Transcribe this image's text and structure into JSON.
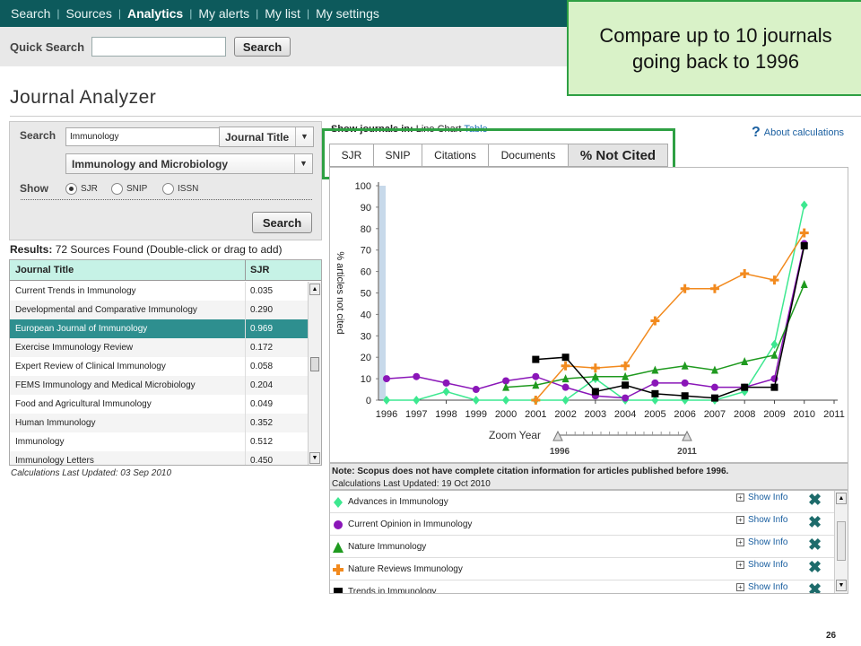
{
  "nav": {
    "items": [
      "Search",
      "Sources",
      "Analytics",
      "My alerts",
      "My list",
      "My settings"
    ],
    "active": "Analytics"
  },
  "quick_search": {
    "label": "Quick Search",
    "value": "",
    "button": "Search"
  },
  "callout": "Compare up to 10 journals going back to 1996",
  "page_title": "Journal Analyzer",
  "search_panel": {
    "label": "Search",
    "query": "Immunology",
    "field": "Journal Title",
    "category": "Immunology and Microbiology",
    "show_label": "Show",
    "options": [
      "SJR",
      "SNIP",
      "ISSN"
    ],
    "selected": "SJR",
    "button": "Search"
  },
  "results": {
    "prefix": "Results:",
    "text": "72 Sources Found (Double-click or drag to add)"
  },
  "table": {
    "headers": [
      "Journal Title",
      "SJR"
    ],
    "rows": [
      {
        "title": "Current Trends in Immunology",
        "sjr": "0.035"
      },
      {
        "title": "Developmental and Comparative Immunology",
        "sjr": "0.290"
      },
      {
        "title": "European Journal of Immunology",
        "sjr": "0.969",
        "selected": true
      },
      {
        "title": "Exercise Immunology Review",
        "sjr": "0.172"
      },
      {
        "title": "Expert Review of Clinical Immunology",
        "sjr": "0.058"
      },
      {
        "title": "FEMS Immunology and Medical Microbiology",
        "sjr": "0.204"
      },
      {
        "title": "Food and Agricultural Immunology",
        "sjr": "0.049"
      },
      {
        "title": "Human Immunology",
        "sjr": "0.352"
      },
      {
        "title": "Immunology",
        "sjr": "0.512"
      },
      {
        "title": "Immunology Letters",
        "sjr": "0.450"
      }
    ]
  },
  "calc_left": "Calculations Last Updated: 03 Sep 2010",
  "chart_header": {
    "show_in": "Show journals in:",
    "line_chart": "Line Chart",
    "table_link": "Table",
    "about": "About calculations"
  },
  "tabs": [
    "SJR",
    "SNIP",
    "Citations",
    "Documents",
    "% Not Cited"
  ],
  "active_tab": "% Not Cited",
  "zoom": {
    "label": "Zoom Year",
    "start": "1996",
    "end": "2011"
  },
  "note": {
    "line1": "Note: Scopus does not have complete citation information for articles published before 1996.",
    "line2": "Calculations Last Updated: 19 Oct 2010"
  },
  "legend": {
    "show_info": "Show Info",
    "items": [
      {
        "name": "Advances in Immunology",
        "color": "#3de890",
        "shape": "diamond"
      },
      {
        "name": "Current Opinion in Immunology",
        "color": "#8a16b8",
        "shape": "circle"
      },
      {
        "name": "Nature Immunology",
        "color": "#1f9a1f",
        "shape": "triangle"
      },
      {
        "name": "Nature Reviews Immunology",
        "color": "#f28a1e",
        "shape": "plus"
      },
      {
        "name": "Trends in Immunology",
        "color": "#000000",
        "shape": "square"
      }
    ]
  },
  "page_number": "26",
  "chart_data": {
    "type": "line",
    "ylabel": "% articles not cited",
    "x": [
      1996,
      1997,
      1998,
      1999,
      2000,
      2001,
      2002,
      2003,
      2004,
      2005,
      2006,
      2007,
      2008,
      2009,
      2010
    ],
    "x_ticks": [
      "1996",
      "1997",
      "1998",
      "1999",
      "2000",
      "2001",
      "2002",
      "2003",
      "2004",
      "2005",
      "2006",
      "2007",
      "2008",
      "2009",
      "2010",
      "2011"
    ],
    "y_ticks": [
      "0",
      "10",
      "20",
      "30",
      "40",
      "50",
      "60",
      "70",
      "80",
      "90",
      "100"
    ],
    "ylim": [
      0,
      100
    ],
    "xlim": [
      1996,
      2011
    ],
    "series": [
      {
        "name": "Advances in Immunology",
        "color": "#3de890",
        "shape": "diamond",
        "values": [
          0,
          0,
          4,
          0,
          0,
          0,
          0,
          10,
          0,
          0,
          0,
          0,
          4,
          26,
          91
        ]
      },
      {
        "name": "Current Opinion in Immunology",
        "color": "#8a16b8",
        "shape": "circle",
        "values": [
          10,
          11,
          8,
          5,
          9,
          11,
          6,
          2,
          1,
          8,
          8,
          6,
          6,
          10,
          73
        ]
      },
      {
        "name": "Nature Immunology",
        "color": "#1f9a1f",
        "shape": "triangle",
        "values": [
          null,
          null,
          null,
          null,
          6,
          7,
          10,
          11,
          11,
          14,
          16,
          14,
          18,
          21,
          54
        ]
      },
      {
        "name": "Nature Reviews Immunology",
        "color": "#f28a1e",
        "shape": "plus",
        "values": [
          null,
          null,
          null,
          null,
          null,
          0,
          16,
          15,
          16,
          37,
          52,
          52,
          59,
          56,
          78
        ]
      },
      {
        "name": "Trends in Immunology",
        "color": "#000000",
        "shape": "square",
        "values": [
          null,
          null,
          null,
          null,
          null,
          19,
          20,
          4,
          7,
          3,
          2,
          1,
          6,
          6,
          72
        ]
      }
    ]
  }
}
